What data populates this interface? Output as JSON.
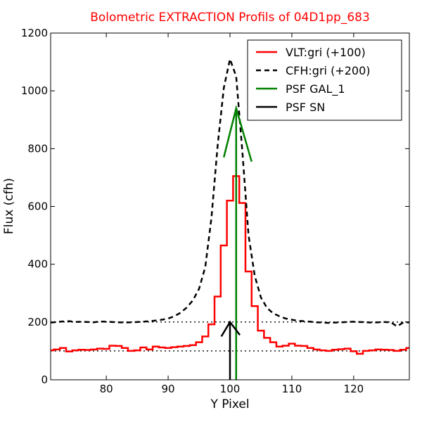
{
  "chart_data": {
    "type": "line",
    "title": "Bolometric EXTRACTION Profils of 04D1pp_683",
    "title_color": "#ff0000",
    "xlabel": "Y Pixel",
    "ylabel": "Flux (cfh)",
    "xlim": [
      71,
      129
    ],
    "ylim": [
      0,
      1200
    ],
    "xticks": [
      80,
      90,
      100,
      110,
      120
    ],
    "yticks": [
      0,
      200,
      400,
      600,
      800,
      1000,
      1200
    ],
    "grid": false,
    "legend_position": "top-right",
    "reference_lines": [
      {
        "y": 100,
        "style": "dotted",
        "color": "#000000"
      },
      {
        "y": 200,
        "style": "dotted",
        "color": "#000000"
      }
    ],
    "series": [
      {
        "name": "VLT:gri (+100)",
        "color": "#ff0000",
        "style": "steps",
        "x": [
          71,
          72,
          73,
          74,
          75,
          76,
          77,
          78,
          79,
          80,
          81,
          82,
          83,
          84,
          85,
          86,
          87,
          88,
          89,
          90,
          91,
          92,
          93,
          94,
          95,
          96,
          97,
          98,
          99,
          100,
          101,
          102,
          103,
          104,
          105,
          106,
          107,
          108,
          109,
          110,
          111,
          112,
          113,
          114,
          115,
          116,
          117,
          118,
          119,
          120,
          121,
          122,
          123,
          124,
          125,
          126,
          127,
          128,
          129
        ],
        "y": [
          102,
          105,
          110,
          98,
          102,
          104,
          103,
          105,
          108,
          107,
          118,
          117,
          110,
          100,
          102,
          112,
          105,
          115,
          112,
          110,
          113,
          115,
          117,
          120,
          130,
          150,
          192,
          288,
          465,
          620,
          705,
          612,
          375,
          255,
          170,
          145,
          130,
          115,
          118,
          125,
          118,
          117,
          110,
          105,
          102,
          100,
          104,
          106,
          108,
          99,
          90,
          100,
          102,
          105,
          104,
          103,
          100,
          104,
          110
        ]
      },
      {
        "name": "CFH:gri (+200)",
        "color": "#000000",
        "style": "dashed",
        "x": [
          71,
          72,
          73,
          74,
          75,
          76,
          77,
          78,
          79,
          80,
          81,
          82,
          83,
          84,
          85,
          86,
          87,
          88,
          89,
          90,
          91,
          92,
          93,
          94,
          95,
          96,
          97,
          98,
          99,
          100,
          101,
          102,
          103,
          104,
          105,
          106,
          107,
          108,
          109,
          110,
          111,
          112,
          113,
          114,
          115,
          116,
          117,
          118,
          119,
          120,
          121,
          122,
          123,
          124,
          125,
          126,
          127,
          128,
          129
        ],
        "y": [
          198,
          200,
          202,
          203,
          200,
          201,
          200,
          199,
          202,
          201,
          200,
          199,
          198,
          199,
          200,
          201,
          203,
          205,
          208,
          212,
          220,
          232,
          250,
          275,
          315,
          390,
          560,
          810,
          1010,
          1110,
          1050,
          790,
          500,
          360,
          285,
          248,
          230,
          220,
          212,
          208,
          204,
          203,
          201,
          199,
          198,
          197,
          198,
          199,
          200,
          201,
          200,
          199,
          198,
          199,
          200,
          199,
          185,
          198,
          199
        ]
      },
      {
        "name": "PSF GAL_1",
        "color": "#008000",
        "style": "solid",
        "x": [
          101,
          101
        ],
        "y": [
          0,
          940
        ]
      },
      {
        "name": "PSF SN",
        "color": "#000000",
        "style": "solid",
        "x": [
          100,
          100
        ],
        "y": [
          0,
          200
        ]
      }
    ],
    "arrowheads": [
      {
        "series": "PSF GAL_1",
        "tip": [
          101,
          940
        ],
        "left": [
          99,
          770
        ],
        "right": [
          103.5,
          755
        ],
        "color": "#008000"
      },
      {
        "series": "PSF SN",
        "tip": [
          100,
          200
        ],
        "left": [
          98.6,
          150
        ],
        "right": [
          101.6,
          155
        ],
        "color": "#000000"
      }
    ]
  }
}
